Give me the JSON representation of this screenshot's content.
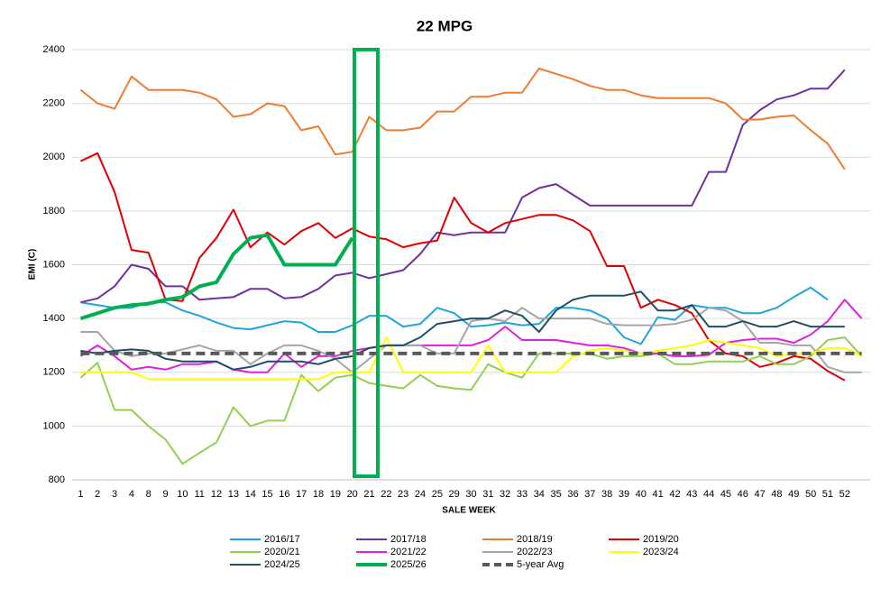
{
  "chart_data": {
    "type": "line",
    "title": "22 MPG",
    "x_label": "SALE WEEK",
    "y_label": "EMI (C)",
    "categories": [
      "1",
      "2",
      "3",
      "4",
      "8",
      "9",
      "10",
      "11",
      "12",
      "13",
      "14",
      "15",
      "16",
      "17",
      "18",
      "19",
      "20",
      "21",
      "22",
      "23",
      "24",
      "25",
      "29",
      "30",
      "31",
      "32",
      "33",
      "34",
      "35",
      "36",
      "37",
      "38",
      "39",
      "40",
      "41",
      "42",
      "43",
      "44",
      "45",
      "46",
      "47",
      "48",
      "49",
      "50",
      "51",
      "52",
      null
    ],
    "ylim": [
      800,
      2400
    ],
    "yticks": [
      800,
      1000,
      1200,
      1400,
      1600,
      1800,
      2000,
      2200,
      2400
    ],
    "grid": true,
    "legend": "bottom",
    "series": [
      {
        "name": "2016/17",
        "color": "#1ea5e0",
        "values": [
          1460,
          1450,
          1440,
          1440,
          1460,
          1460,
          1430,
          1410,
          1385,
          1365,
          1360,
          1375,
          1390,
          1385,
          1350,
          1350,
          1375,
          1410,
          1410,
          1370,
          1380,
          1440,
          1420,
          1370,
          1375,
          1385,
          1375,
          1380,
          1440,
          1440,
          1430,
          1400,
          1330,
          1305,
          1405,
          1395,
          1450,
          1440,
          1440,
          1420,
          1420,
          1440,
          1480,
          1515,
          1470,
          null,
          null
        ]
      },
      {
        "name": "2017/18",
        "color": "#7030a0",
        "values": [
          1460,
          1475,
          1520,
          1600,
          1585,
          1520,
          1520,
          1470,
          1475,
          1480,
          1510,
          1510,
          1475,
          1480,
          1510,
          1560,
          1570,
          1550,
          1565,
          1580,
          1640,
          1720,
          1710,
          1720,
          1720,
          1720,
          1850,
          1885,
          1900,
          1860,
          1820,
          1820,
          1820,
          1820,
          1820,
          1820,
          1820,
          1945,
          1945,
          2120,
          2175,
          2215,
          2230,
          2255,
          2255,
          2325,
          null
        ]
      },
      {
        "name": "2018/19",
        "color": "#ed7d31",
        "values": [
          2250,
          2200,
          2180,
          2300,
          2250,
          2250,
          2250,
          2240,
          2215,
          2150,
          2160,
          2200,
          2190,
          2100,
          2115,
          2010,
          2020,
          2150,
          2100,
          2100,
          2110,
          2170,
          2170,
          2225,
          2225,
          2240,
          2240,
          2330,
          2310,
          2290,
          2265,
          2250,
          2250,
          2230,
          2220,
          2220,
          2220,
          2220,
          2200,
          2140,
          2140,
          2150,
          2155,
          2100,
          2050,
          1955,
          null
        ]
      },
      {
        "name": "2019/20",
        "color": "#e00000",
        "values": [
          1985,
          2015,
          1870,
          1655,
          1645,
          1470,
          1465,
          1625,
          1700,
          1805,
          1665,
          1720,
          1675,
          1725,
          1755,
          1700,
          1735,
          1705,
          1695,
          1665,
          1680,
          1690,
          1850,
          1755,
          1720,
          1755,
          1770,
          1785,
          1785,
          1765,
          1725,
          1595,
          1595,
          1440,
          1470,
          1450,
          1420,
          1320,
          1270,
          1260,
          1220,
          1235,
          1260,
          1250,
          1205,
          1170,
          null
        ]
      },
      {
        "name": "2020/21",
        "color": "#92d050",
        "values": [
          1180,
          1235,
          1060,
          1060,
          1000,
          950,
          860,
          900,
          940,
          1070,
          1000,
          1020,
          1020,
          1190,
          1130,
          1180,
          1190,
          1160,
          1150,
          1140,
          1190,
          1150,
          1140,
          1135,
          1230,
          1200,
          1180,
          1270,
          1270,
          1270,
          1270,
          1250,
          1260,
          1260,
          1270,
          1230,
          1230,
          1240,
          1240,
          1240,
          1260,
          1230,
          1230,
          1260,
          1320,
          1330,
          1260
        ]
      },
      {
        "name": "2021/22",
        "color": "#e020e0",
        "values": [
          1260,
          1300,
          1260,
          1210,
          1220,
          1210,
          1230,
          1230,
          1240,
          1210,
          1200,
          1200,
          1270,
          1220,
          1260,
          1260,
          1280,
          1290,
          1300,
          1300,
          1300,
          1300,
          1300,
          1300,
          1320,
          1370,
          1320,
          1320,
          1320,
          1310,
          1300,
          1300,
          1290,
          1270,
          1270,
          1260,
          1260,
          1265,
          1310,
          1320,
          1325,
          1325,
          1310,
          1340,
          1390,
          1470,
          1400
        ]
      },
      {
        "name": "2022/23",
        "color": "#a6a6a6",
        "values": [
          1350,
          1350,
          1280,
          1260,
          1270,
          1270,
          1285,
          1300,
          1280,
          1280,
          1230,
          1270,
          1300,
          1300,
          1280,
          1250,
          1200,
          1250,
          1300,
          1300,
          1300,
          1270,
          1270,
          1390,
          1400,
          1390,
          1440,
          1400,
          1400,
          1400,
          1400,
          1380,
          1375,
          1375,
          1375,
          1380,
          1395,
          1440,
          1430,
          1390,
          1310,
          1310,
          1300,
          1300,
          1220,
          1200,
          1200
        ]
      },
      {
        "name": "2023/24",
        "color": "#ffff00",
        "values": [
          1200,
          1200,
          1200,
          1200,
          1175,
          1175,
          1175,
          1175,
          1175,
          1175,
          1175,
          1175,
          1175,
          1175,
          1175,
          1200,
          1200,
          1200,
          1330,
          1200,
          1200,
          1200,
          1200,
          1200,
          1300,
          1200,
          1200,
          1200,
          1200,
          1260,
          1280,
          1290,
          1280,
          1270,
          1280,
          1290,
          1300,
          1320,
          1310,
          1300,
          1290,
          1260,
          1270,
          1270,
          1290,
          1290,
          1260
        ]
      },
      {
        "name": "2024/25",
        "color": "#1f4e69",
        "values": [
          1280,
          1270,
          1280,
          1285,
          1280,
          1250,
          1240,
          1240,
          1240,
          1210,
          1220,
          1240,
          1240,
          1240,
          1230,
          1250,
          1260,
          1290,
          1300,
          1300,
          1330,
          1380,
          1390,
          1400,
          1400,
          1430,
          1410,
          1350,
          1430,
          1470,
          1485,
          1485,
          1485,
          1500,
          1430,
          1430,
          1450,
          1370,
          1370,
          1390,
          1370,
          1370,
          1390,
          1370,
          1370,
          1370,
          null
        ]
      },
      {
        "name": "2025/26",
        "color": "#00b050",
        "linewidth": 4,
        "values": [
          1400,
          1420,
          1440,
          1450,
          1455,
          1470,
          1480,
          1520,
          1535,
          1640,
          1700,
          1710,
          1600,
          1600,
          1600,
          1600,
          1700,
          null,
          null,
          null,
          null,
          null,
          null,
          null,
          null,
          null,
          null,
          null,
          null,
          null,
          null,
          null,
          null,
          null,
          null,
          null,
          null,
          null,
          null,
          null,
          null,
          null,
          null,
          null,
          null,
          null,
          null
        ]
      },
      {
        "name": "5-year Avg",
        "color": "#595959",
        "dashed": true,
        "linewidth": 4,
        "values": [
          1270,
          1270,
          1270,
          1270,
          1270,
          1270,
          1270,
          1270,
          1270,
          1270,
          1270,
          1270,
          1270,
          1270,
          1270,
          1270,
          1270,
          1270,
          1270,
          1270,
          1270,
          1270,
          1270,
          1270,
          1270,
          1270,
          1270,
          1270,
          1270,
          1270,
          1270,
          1270,
          1270,
          1270,
          1270,
          1270,
          1270,
          1270,
          1270,
          1270,
          1270,
          1270,
          1270,
          1270,
          1270,
          1270,
          1270
        ]
      }
    ]
  }
}
